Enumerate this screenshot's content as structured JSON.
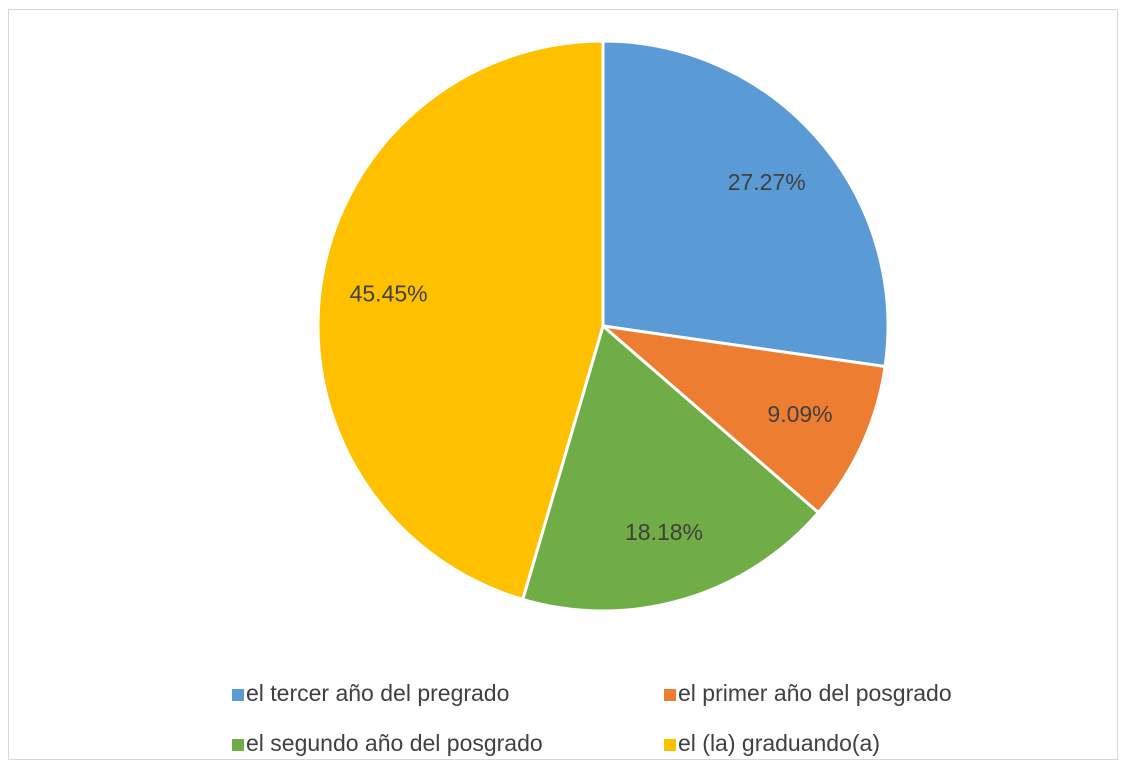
{
  "chart_data": {
    "type": "pie",
    "categories": [
      "el tercer año del pregrado",
      "el primer año del posgrado",
      "el segundo año del posgrado",
      "el (la) graduando(a)"
    ],
    "values": [
      27.27,
      9.09,
      18.18,
      45.45
    ],
    "value_labels": [
      "27.27%",
      "9.09%",
      "18.18%",
      "45.45%"
    ],
    "colors": [
      "#5b9bd5",
      "#ed7d31",
      "#70ad47",
      "#ffc000"
    ],
    "legend": "bottom"
  }
}
